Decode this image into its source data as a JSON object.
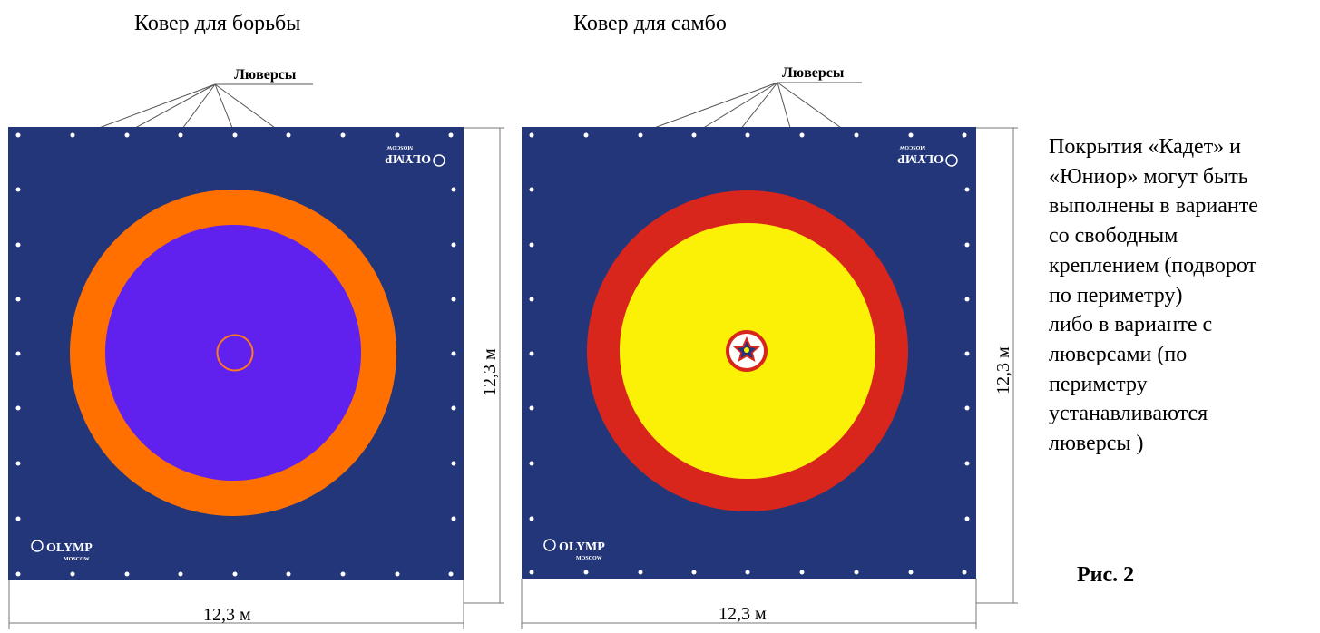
{
  "captions": {
    "left_title": "Ковер для борьбы",
    "right_title": "Ковер для самбо"
  },
  "grommets_label_left": "Люверсы",
  "grommets_label_right": "Люверсы",
  "dimensions": {
    "left_width": "12,3 м",
    "left_height": "12,3 м",
    "right_width": "12,3 м",
    "right_height": "12,3 м"
  },
  "logo": {
    "brand": "OLYMP",
    "city": "MOSCOW"
  },
  "side_text_lines": [
    "Покрытия «Кадет» и",
    "«Юниор» могут быть",
    "выполнены в варианте",
    "со свободным",
    "креплением (подворот",
    "по периметру)",
    "либо в варианте с",
    "люверсами (по",
    "периметру",
    "устанавливаются",
    "люверсы )"
  ],
  "figure_label": "Рис. 2",
  "colors": {
    "mat_background": "#24367a",
    "wrestling_outer_ring": "#ff7000",
    "wrestling_inner_circle": "#6020ee",
    "wrestling_center_ring": "#ff7a1a",
    "sambo_outer_ring": "#d9261c",
    "sambo_inner_circle": "#fbf107",
    "grommet": "#ffffff"
  }
}
